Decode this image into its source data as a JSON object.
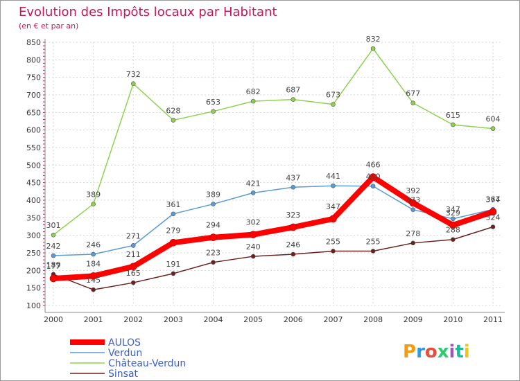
{
  "chart_data": {
    "type": "line",
    "title": "Evolution des Impôts locaux par Habitant",
    "subtitle": "(en € et par an)",
    "x": [
      "2000",
      "2001",
      "2002",
      "2003",
      "2004",
      "2005",
      "2006",
      "2007",
      "2008",
      "2009",
      "2010",
      "2011"
    ],
    "ylim": [
      100,
      850
    ],
    "yticks": [
      100,
      150,
      200,
      250,
      300,
      350,
      400,
      450,
      500,
      550,
      600,
      650,
      700,
      750,
      800,
      850
    ],
    "grid": true,
    "legend_position": "bottom-left",
    "series": [
      {
        "name": "AULOS",
        "color": "#ff0000",
        "values": [
          177,
          184,
          211,
          279,
          294,
          302,
          323,
          347,
          466,
          392,
          329,
          367
        ]
      },
      {
        "name": "Verdun",
        "color": "#5b9bd5",
        "values": [
          242,
          246,
          271,
          361,
          389,
          421,
          437,
          441,
          440,
          373,
          347,
          374
        ]
      },
      {
        "name": "Château-Verdun",
        "color": "#8fd14f",
        "values": [
          301,
          389,
          732,
          628,
          653,
          682,
          687,
          673,
          832,
          677,
          615,
          604
        ]
      },
      {
        "name": "Sinsat",
        "color": "#6b1f1f",
        "values": [
          189,
          145,
          165,
          191,
          223,
          240,
          246,
          255,
          255,
          278,
          288,
          324
        ]
      }
    ]
  },
  "branding": {
    "logo_text": "Proxiti",
    "logo_colors": [
      "#f39c12",
      "#3498db",
      "#e74c3c",
      "#2ecc71",
      "#9b59b6",
      "#1abc9c",
      "#f1c40f"
    ]
  }
}
